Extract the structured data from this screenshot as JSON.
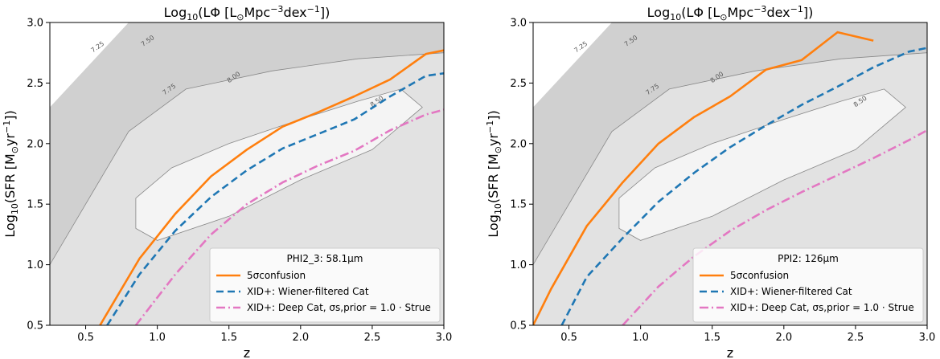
{
  "chart_data": [
    {
      "type": "line",
      "title_prefix": "Log",
      "title_sub": "10",
      "title_rest": "(LΦ [L",
      "title_sun": "⊙",
      "title_unit": "Mpc",
      "title_exp1": "−3",
      "title_mid": "dex",
      "title_exp2": "−1",
      "title_end": "])",
      "xlabel": "z",
      "ylabel": "Log10(SFR [M⊙yr−1])",
      "xlim": [
        0.25,
        3.0
      ],
      "ylim": [
        0.5,
        3.0
      ],
      "xticks": [
        "0.5",
        "1.0",
        "1.5",
        "2.0",
        "2.5",
        "3.0"
      ],
      "yticks": [
        "0.5",
        "1.0",
        "1.5",
        "2.0",
        "2.5",
        "3.0"
      ],
      "legend_title": "PHI2_3: 58.1μm",
      "legend_placement": "lower right",
      "contour_levels": [
        "7.25",
        "7.50",
        "7.75",
        "8.00",
        "8.50"
      ],
      "series": [
        {
          "name": "5σconfusion",
          "color": "#ff7f0e",
          "style": "solid",
          "x": [
            0.6,
            0.875,
            1.125,
            1.375,
            1.625,
            1.875,
            2.125,
            2.375,
            2.625,
            2.875,
            3.0
          ],
          "y": [
            0.5,
            1.05,
            1.42,
            1.73,
            1.95,
            2.14,
            2.26,
            2.39,
            2.53,
            2.74,
            2.77
          ]
        },
        {
          "name": "XID+: Wiener-filtered Cat",
          "color": "#1f77b4",
          "style": "dashed",
          "x": [
            0.65,
            0.875,
            1.125,
            1.375,
            1.625,
            1.875,
            2.125,
            2.375,
            2.625,
            2.875,
            3.0
          ],
          "y": [
            0.5,
            0.92,
            1.28,
            1.56,
            1.78,
            1.96,
            2.08,
            2.2,
            2.39,
            2.56,
            2.58
          ]
        },
        {
          "name": "XID+: Deep Cat, σs,prior = 1.0 · Strue",
          "color": "#e377c2",
          "style": "dashdot",
          "x": [
            0.85,
            1.125,
            1.375,
            1.625,
            1.875,
            2.125,
            2.375,
            2.625,
            2.875,
            3.0
          ],
          "y": [
            0.5,
            0.92,
            1.25,
            1.5,
            1.68,
            1.82,
            1.94,
            2.11,
            2.24,
            2.28
          ]
        }
      ]
    },
    {
      "type": "line",
      "title_prefix": "Log",
      "title_sub": "10",
      "title_rest": "(LΦ [L",
      "title_sun": "⊙",
      "title_unit": "Mpc",
      "title_exp1": "−3",
      "title_mid": "dex",
      "title_exp2": "−1",
      "title_end": "])",
      "xlabel": "z",
      "ylabel": "Log10(SFR [M⊙yr−1])",
      "xlim": [
        0.25,
        3.0
      ],
      "ylim": [
        0.5,
        3.0
      ],
      "xticks": [
        "0.5",
        "1.0",
        "1.5",
        "2.0",
        "2.5",
        "3.0"
      ],
      "yticks": [
        "0.5",
        "1.0",
        "1.5",
        "2.0",
        "2.5",
        "3.0"
      ],
      "legend_title": "PPI2: 126μm",
      "legend_placement": "lower right",
      "contour_levels": [
        "7.25",
        "7.50",
        "7.75",
        "8.00",
        "8.50"
      ],
      "series": [
        {
          "name": "5σconfusion",
          "color": "#ff7f0e",
          "style": "solid",
          "x": [
            0.25,
            0.375,
            0.625,
            0.875,
            1.125,
            1.375,
            1.625,
            1.875,
            2.125,
            2.375,
            2.625
          ],
          "y": [
            0.5,
            0.8,
            1.32,
            1.68,
            2.0,
            2.22,
            2.39,
            2.61,
            2.69,
            2.92,
            2.85
          ]
        },
        {
          "name": "XID+: Wiener-filtered Cat",
          "color": "#1f77b4",
          "style": "dashed",
          "x": [
            0.45,
            0.625,
            0.875,
            1.125,
            1.375,
            1.625,
            1.875,
            2.125,
            2.375,
            2.625,
            2.875,
            3.0
          ],
          "y": [
            0.5,
            0.9,
            1.22,
            1.52,
            1.76,
            1.97,
            2.15,
            2.32,
            2.47,
            2.63,
            2.76,
            2.79
          ]
        },
        {
          "name": "XID+: Deep Cat, σs,prior = 1.0 · Strue",
          "color": "#e377c2",
          "style": "dashdot",
          "x": [
            0.875,
            1.125,
            1.375,
            1.625,
            1.875,
            2.125,
            2.375,
            2.625,
            2.875,
            3.0
          ],
          "y": [
            0.5,
            0.82,
            1.07,
            1.28,
            1.45,
            1.6,
            1.74,
            1.88,
            2.03,
            2.11
          ]
        }
      ]
    }
  ]
}
